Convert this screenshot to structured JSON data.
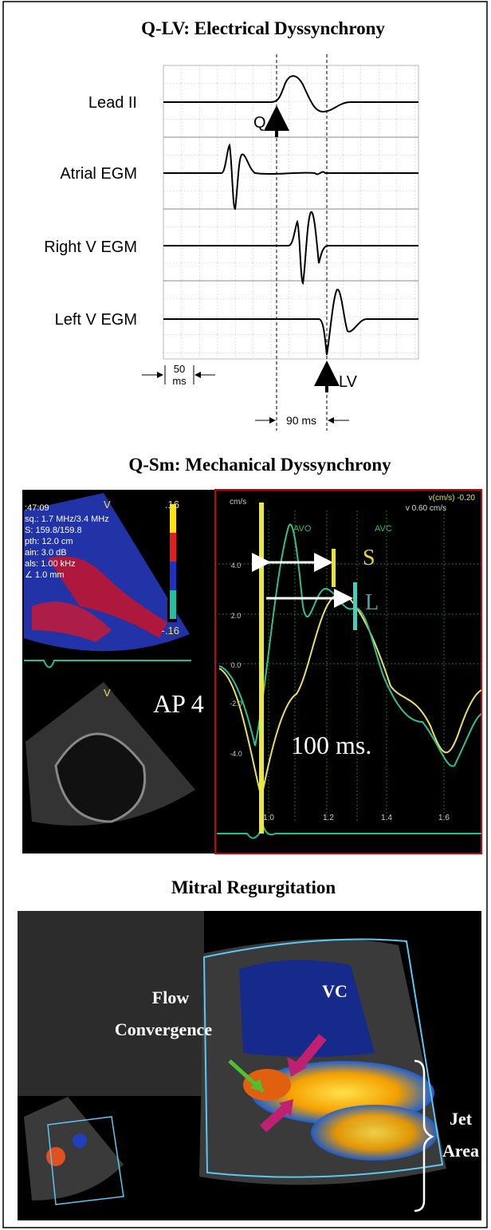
{
  "panels": [
    {
      "title": "Q-LV: Electrical Dyssynchrony",
      "leads": [
        "Lead II",
        "Atrial EGM",
        "Right V EGM",
        "Left V EGM"
      ],
      "q": "Q",
      "lv": "LV",
      "scale": [
        "50",
        "ms"
      ],
      "interval": "90 ms"
    },
    {
      "title": "Q-Sm: Mechanical Dyssynchrony",
      "view": "AP 4",
      "interval": "100 ms.",
      "s": "S",
      "l": "L",
      "valves": [
        "AVO",
        "AVC"
      ],
      "unit": "cm/s",
      "header": [
        "v(cm/s)  -0.20",
        "v 0.60 cm/s"
      ],
      "y_labels": [
        "4.0",
        "2.0",
        "0.0",
        "-2.0",
        "-4.0"
      ],
      "x_labels": [
        "1.0",
        "1.2",
        "1.4",
        "1.6"
      ],
      "color_scale": [
        ".16",
        "-.16"
      ],
      "settings": [
        ":47:09",
        "sq.: 1.7 MHz/3.4 MHz",
        "S: 159.8/159.8",
        "pth: 12.0 cm",
        "ain: 3.0 dB",
        "als: 1.00 kHz",
        "∠ 1.0 mm"
      ],
      "sector_labels": [
        "V",
        "V"
      ]
    },
    {
      "title": "Mitral Regurgitation",
      "flow": [
        "Flow",
        "Convergence"
      ],
      "vc": "VC",
      "jet": [
        "Jet",
        "Area"
      ]
    }
  ]
}
